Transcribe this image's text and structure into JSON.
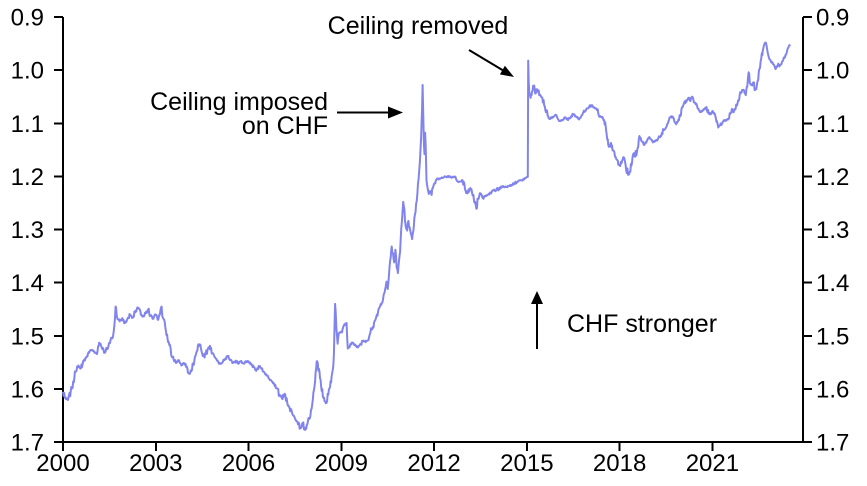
{
  "chart_data": {
    "type": "line",
    "title": "",
    "xlabel": "",
    "ylabel": "",
    "y_axis_inverted": true,
    "x_range": [
      2000,
      2023.93
    ],
    "y_range": [
      0.9,
      1.7
    ],
    "x_ticks": [
      2000,
      2003,
      2006,
      2009,
      2012,
      2015,
      2018,
      2021
    ],
    "x_tick_labels": [
      "2000",
      "2003",
      "2006",
      "2009",
      "2012",
      "2015",
      "2018",
      "2021"
    ],
    "y_ticks": [
      0.9,
      1.0,
      1.1,
      1.2,
      1.3,
      1.4,
      1.5,
      1.6,
      1.7
    ],
    "y_tick_labels": [
      "0.9",
      "1.0",
      "1.1",
      "1.2",
      "1.3",
      "1.4",
      "1.5",
      "1.6",
      "1.7"
    ],
    "y_labels_both_sides": true,
    "grid": false,
    "line_color": "#8184ec",
    "axis_color": "#000000",
    "annotations": [
      {
        "id": "ceiling-imposed",
        "text_lines": [
          "Ceiling imposed",
          "on CHF"
        ],
        "arrow_direction": "right"
      },
      {
        "id": "ceiling-removed",
        "text_lines": [
          "Ceiling removed"
        ],
        "arrow_direction": "down-right"
      },
      {
        "id": "chf-stronger",
        "text_lines": [
          "CHF stronger"
        ],
        "arrow_direction": "up"
      }
    ],
    "series": [
      [
        2000.0,
        1.607
      ],
      [
        2000.08,
        1.616
      ],
      [
        2000.16,
        1.621
      ],
      [
        2000.25,
        1.605
      ],
      [
        2000.33,
        1.586
      ],
      [
        2000.42,
        1.567
      ],
      [
        2000.5,
        1.556
      ],
      [
        2000.58,
        1.561
      ],
      [
        2000.67,
        1.548
      ],
      [
        2000.75,
        1.541
      ],
      [
        2000.83,
        1.531
      ],
      [
        2000.92,
        1.527
      ],
      [
        2001.0,
        1.529
      ],
      [
        2001.08,
        1.534
      ],
      [
        2001.17,
        1.513
      ],
      [
        2001.25,
        1.522
      ],
      [
        2001.33,
        1.532
      ],
      [
        2001.42,
        1.524
      ],
      [
        2001.5,
        1.513
      ],
      [
        2001.58,
        1.505
      ],
      [
        2001.64,
        1.492
      ],
      [
        2001.7,
        1.445
      ],
      [
        2001.75,
        1.466
      ],
      [
        2001.83,
        1.473
      ],
      [
        2001.92,
        1.467
      ],
      [
        2002.0,
        1.476
      ],
      [
        2002.08,
        1.469
      ],
      [
        2002.17,
        1.461
      ],
      [
        2002.25,
        1.466
      ],
      [
        2002.33,
        1.456
      ],
      [
        2002.42,
        1.448
      ],
      [
        2002.5,
        1.453
      ],
      [
        2002.58,
        1.464
      ],
      [
        2002.67,
        1.458
      ],
      [
        2002.75,
        1.451
      ],
      [
        2002.83,
        1.462
      ],
      [
        2002.92,
        1.468
      ],
      [
        2003.0,
        1.461
      ],
      [
        2003.08,
        1.47
      ],
      [
        2003.17,
        1.447
      ],
      [
        2003.25,
        1.468
      ],
      [
        2003.33,
        1.492
      ],
      [
        2003.42,
        1.512
      ],
      [
        2003.5,
        1.536
      ],
      [
        2003.58,
        1.545
      ],
      [
        2003.67,
        1.551
      ],
      [
        2003.75,
        1.546
      ],
      [
        2003.83,
        1.556
      ],
      [
        2003.92,
        1.552
      ],
      [
        2004.0,
        1.558
      ],
      [
        2004.08,
        1.571
      ],
      [
        2004.17,
        1.564
      ],
      [
        2004.25,
        1.546
      ],
      [
        2004.33,
        1.529
      ],
      [
        2004.4,
        1.516
      ],
      [
        2004.5,
        1.534
      ],
      [
        2004.58,
        1.541
      ],
      [
        2004.67,
        1.528
      ],
      [
        2004.75,
        1.519
      ],
      [
        2004.83,
        1.533
      ],
      [
        2004.92,
        1.541
      ],
      [
        2005.0,
        1.547
      ],
      [
        2005.08,
        1.553
      ],
      [
        2005.17,
        1.549
      ],
      [
        2005.25,
        1.543
      ],
      [
        2005.33,
        1.538
      ],
      [
        2005.42,
        1.545
      ],
      [
        2005.5,
        1.551
      ],
      [
        2005.58,
        1.547
      ],
      [
        2005.67,
        1.553
      ],
      [
        2005.75,
        1.548
      ],
      [
        2005.83,
        1.552
      ],
      [
        2005.92,
        1.549
      ],
      [
        2006.0,
        1.548
      ],
      [
        2006.08,
        1.554
      ],
      [
        2006.17,
        1.559
      ],
      [
        2006.25,
        1.566
      ],
      [
        2006.33,
        1.557
      ],
      [
        2006.42,
        1.562
      ],
      [
        2006.5,
        1.568
      ],
      [
        2006.58,
        1.575
      ],
      [
        2006.67,
        1.581
      ],
      [
        2006.75,
        1.586
      ],
      [
        2006.83,
        1.591
      ],
      [
        2006.92,
        1.599
      ],
      [
        2007.0,
        1.611
      ],
      [
        2007.08,
        1.618
      ],
      [
        2007.17,
        1.609
      ],
      [
        2007.25,
        1.625
      ],
      [
        2007.33,
        1.637
      ],
      [
        2007.42,
        1.648
      ],
      [
        2007.5,
        1.655
      ],
      [
        2007.58,
        1.662
      ],
      [
        2007.67,
        1.673
      ],
      [
        2007.75,
        1.664
      ],
      [
        2007.83,
        1.677
      ],
      [
        2007.92,
        1.661
      ],
      [
        2008.0,
        1.651
      ],
      [
        2008.08,
        1.619
      ],
      [
        2008.17,
        1.569
      ],
      [
        2008.22,
        1.548
      ],
      [
        2008.33,
        1.583
      ],
      [
        2008.42,
        1.617
      ],
      [
        2008.5,
        1.627
      ],
      [
        2008.58,
        1.611
      ],
      [
        2008.67,
        1.588
      ],
      [
        2008.72,
        1.565
      ],
      [
        2008.76,
        1.535
      ],
      [
        2008.8,
        1.44
      ],
      [
        2008.84,
        1.486
      ],
      [
        2008.88,
        1.515
      ],
      [
        2008.92,
        1.496
      ],
      [
        2009.0,
        1.492
      ],
      [
        2009.08,
        1.481
      ],
      [
        2009.17,
        1.476
      ],
      [
        2009.21,
        1.524
      ],
      [
        2009.29,
        1.516
      ],
      [
        2009.38,
        1.513
      ],
      [
        2009.46,
        1.519
      ],
      [
        2009.54,
        1.522
      ],
      [
        2009.63,
        1.516
      ],
      [
        2009.71,
        1.509
      ],
      [
        2009.79,
        1.512
      ],
      [
        2009.88,
        1.508
      ],
      [
        2009.96,
        1.486
      ],
      [
        2010.0,
        1.488
      ],
      [
        2010.08,
        1.472
      ],
      [
        2010.17,
        1.462
      ],
      [
        2010.25,
        1.445
      ],
      [
        2010.33,
        1.437
      ],
      [
        2010.42,
        1.412
      ],
      [
        2010.46,
        1.398
      ],
      [
        2010.5,
        1.412
      ],
      [
        2010.54,
        1.388
      ],
      [
        2010.58,
        1.358
      ],
      [
        2010.63,
        1.332
      ],
      [
        2010.67,
        1.345
      ],
      [
        2010.71,
        1.362
      ],
      [
        2010.75,
        1.338
      ],
      [
        2010.79,
        1.372
      ],
      [
        2010.83,
        1.382
      ],
      [
        2010.88,
        1.352
      ],
      [
        2010.92,
        1.318
      ],
      [
        2010.96,
        1.285
      ],
      [
        2011.0,
        1.248
      ],
      [
        2011.04,
        1.262
      ],
      [
        2011.08,
        1.292
      ],
      [
        2011.13,
        1.302
      ],
      [
        2011.17,
        1.284
      ],
      [
        2011.21,
        1.296
      ],
      [
        2011.25,
        1.308
      ],
      [
        2011.29,
        1.318
      ],
      [
        2011.33,
        1.302
      ],
      [
        2011.38,
        1.272
      ],
      [
        2011.42,
        1.252
      ],
      [
        2011.46,
        1.232
      ],
      [
        2011.5,
        1.205
      ],
      [
        2011.54,
        1.172
      ],
      [
        2011.58,
        1.128
      ],
      [
        2011.61,
        1.078
      ],
      [
        2011.63,
        1.028
      ],
      [
        2011.65,
        1.088
      ],
      [
        2011.67,
        1.138
      ],
      [
        2011.69,
        1.158
      ],
      [
        2011.71,
        1.118
      ],
      [
        2011.73,
        1.142
      ],
      [
        2011.755,
        1.208
      ],
      [
        2011.79,
        1.222
      ],
      [
        2011.83,
        1.233
      ],
      [
        2011.88,
        1.228
      ],
      [
        2011.92,
        1.235
      ],
      [
        2011.96,
        1.222
      ],
      [
        2012.0,
        1.214
      ],
      [
        2012.08,
        1.206
      ],
      [
        2012.17,
        1.204
      ],
      [
        2012.25,
        1.202
      ],
      [
        2012.33,
        1.201
      ],
      [
        2012.5,
        1.201
      ],
      [
        2012.67,
        1.201
      ],
      [
        2012.75,
        1.209
      ],
      [
        2012.83,
        1.21
      ],
      [
        2012.92,
        1.207
      ],
      [
        2013.0,
        1.224
      ],
      [
        2013.08,
        1.232
      ],
      [
        2013.17,
        1.222
      ],
      [
        2013.25,
        1.236
      ],
      [
        2013.33,
        1.248
      ],
      [
        2013.37,
        1.261
      ],
      [
        2013.42,
        1.243
      ],
      [
        2013.5,
        1.232
      ],
      [
        2013.58,
        1.241
      ],
      [
        2013.67,
        1.236
      ],
      [
        2013.75,
        1.234
      ],
      [
        2013.83,
        1.231
      ],
      [
        2013.92,
        1.226
      ],
      [
        2014.0,
        1.227
      ],
      [
        2014.17,
        1.219
      ],
      [
        2014.33,
        1.22
      ],
      [
        2014.5,
        1.216
      ],
      [
        2014.67,
        1.211
      ],
      [
        2014.83,
        1.207
      ],
      [
        2014.96,
        1.203
      ],
      [
        2015.03,
        1.201
      ],
      [
        2015.045,
        0.982
      ],
      [
        2015.06,
        1.022
      ],
      [
        2015.08,
        1.042
      ],
      [
        2015.12,
        1.052
      ],
      [
        2015.17,
        1.04
      ],
      [
        2015.22,
        1.03
      ],
      [
        2015.27,
        1.044
      ],
      [
        2015.33,
        1.036
      ],
      [
        2015.42,
        1.046
      ],
      [
        2015.5,
        1.052
      ],
      [
        2015.58,
        1.068
      ],
      [
        2015.67,
        1.085
      ],
      [
        2015.75,
        1.092
      ],
      [
        2015.83,
        1.088
      ],
      [
        2015.92,
        1.084
      ],
      [
        2016.0,
        1.092
      ],
      [
        2016.08,
        1.096
      ],
      [
        2016.17,
        1.093
      ],
      [
        2016.25,
        1.089
      ],
      [
        2016.33,
        1.094
      ],
      [
        2016.42,
        1.089
      ],
      [
        2016.5,
        1.083
      ],
      [
        2016.58,
        1.087
      ],
      [
        2016.67,
        1.092
      ],
      [
        2016.75,
        1.088
      ],
      [
        2016.83,
        1.079
      ],
      [
        2016.92,
        1.074
      ],
      [
        2017.0,
        1.071
      ],
      [
        2017.08,
        1.066
      ],
      [
        2017.17,
        1.07
      ],
      [
        2017.25,
        1.073
      ],
      [
        2017.33,
        1.086
      ],
      [
        2017.42,
        1.089
      ],
      [
        2017.5,
        1.094
      ],
      [
        2017.55,
        1.106
      ],
      [
        2017.6,
        1.131
      ],
      [
        2017.67,
        1.143
      ],
      [
        2017.72,
        1.137
      ],
      [
        2017.79,
        1.151
      ],
      [
        2017.85,
        1.163
      ],
      [
        2017.92,
        1.169
      ],
      [
        2018.0,
        1.179
      ],
      [
        2018.08,
        1.171
      ],
      [
        2018.13,
        1.164
      ],
      [
        2018.19,
        1.177
      ],
      [
        2018.27,
        1.197
      ],
      [
        2018.33,
        1.191
      ],
      [
        2018.4,
        1.174
      ],
      [
        2018.45,
        1.157
      ],
      [
        2018.5,
        1.163
      ],
      [
        2018.58,
        1.147
      ],
      [
        2018.64,
        1.124
      ],
      [
        2018.7,
        1.133
      ],
      [
        2018.79,
        1.141
      ],
      [
        2018.88,
        1.133
      ],
      [
        2018.96,
        1.126
      ],
      [
        2019.0,
        1.129
      ],
      [
        2019.08,
        1.136
      ],
      [
        2019.17,
        1.133
      ],
      [
        2019.25,
        1.128
      ],
      [
        2019.33,
        1.123
      ],
      [
        2019.42,
        1.113
      ],
      [
        2019.5,
        1.108
      ],
      [
        2019.58,
        1.096
      ],
      [
        2019.67,
        1.087
      ],
      [
        2019.75,
        1.091
      ],
      [
        2019.79,
        1.099
      ],
      [
        2019.83,
        1.102
      ],
      [
        2019.88,
        1.097
      ],
      [
        2019.96,
        1.087
      ],
      [
        2020.0,
        1.073
      ],
      [
        2020.08,
        1.063
      ],
      [
        2020.17,
        1.057
      ],
      [
        2020.25,
        1.052
      ],
      [
        2020.29,
        1.058
      ],
      [
        2020.33,
        1.051
      ],
      [
        2020.42,
        1.061
      ],
      [
        2020.5,
        1.066
      ],
      [
        2020.56,
        1.075
      ],
      [
        2020.63,
        1.079
      ],
      [
        2020.71,
        1.074
      ],
      [
        2020.79,
        1.071
      ],
      [
        2020.88,
        1.081
      ],
      [
        2020.96,
        1.082
      ],
      [
        2021.0,
        1.077
      ],
      [
        2021.08,
        1.083
      ],
      [
        2021.13,
        1.097
      ],
      [
        2021.19,
        1.108
      ],
      [
        2021.25,
        1.104
      ],
      [
        2021.33,
        1.098
      ],
      [
        2021.42,
        1.094
      ],
      [
        2021.5,
        1.093
      ],
      [
        2021.58,
        1.082
      ],
      [
        2021.63,
        1.073
      ],
      [
        2021.67,
        1.079
      ],
      [
        2021.75,
        1.073
      ],
      [
        2021.83,
        1.057
      ],
      [
        2021.92,
        1.043
      ],
      [
        2022.0,
        1.037
      ],
      [
        2022.04,
        1.043
      ],
      [
        2022.08,
        1.047
      ],
      [
        2022.13,
        1.031
      ],
      [
        2022.17,
        1.004
      ],
      [
        2022.21,
        1.024
      ],
      [
        2022.29,
        1.029
      ],
      [
        2022.33,
        1.023
      ],
      [
        2022.38,
        1.037
      ],
      [
        2022.46,
        1.021
      ],
      [
        2022.5,
        1.003
      ],
      [
        2022.54,
        0.996
      ],
      [
        2022.58,
        0.977
      ],
      [
        2022.63,
        0.963
      ],
      [
        2022.67,
        0.953
      ],
      [
        2022.71,
        0.948
      ],
      [
        2022.75,
        0.953
      ],
      [
        2022.79,
        0.967
      ],
      [
        2022.83,
        0.977
      ],
      [
        2022.92,
        0.986
      ],
      [
        2023.0,
        0.991
      ],
      [
        2023.04,
        0.998
      ],
      [
        2023.08,
        0.993
      ],
      [
        2023.13,
        0.988
      ],
      [
        2023.17,
        0.993
      ],
      [
        2023.25,
        0.984
      ],
      [
        2023.33,
        0.977
      ],
      [
        2023.38,
        0.971
      ],
      [
        2023.42,
        0.963
      ],
      [
        2023.46,
        0.957
      ],
      [
        2023.5,
        0.953
      ]
    ]
  }
}
